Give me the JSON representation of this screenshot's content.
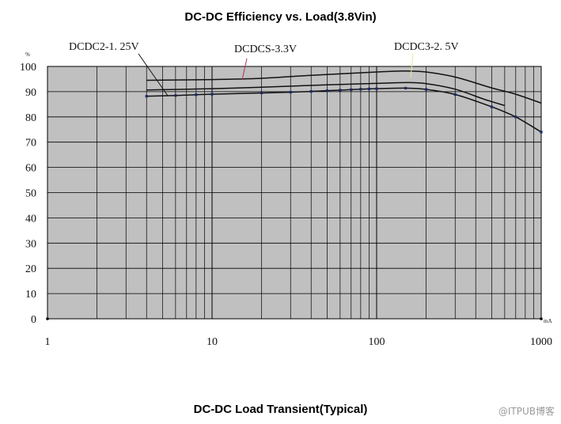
{
  "chart_data": {
    "type": "line",
    "title": "DC-DC Efficiency vs. Load(3.8Vin)",
    "subtitle": "DC-DC Load Transient(Typical)",
    "xlabel": "mA",
    "ylabel": "%",
    "xscale": "log",
    "xlim": [
      1,
      1000
    ],
    "ylim": [
      0,
      100
    ],
    "x_ticks": [
      "1",
      "10",
      "100",
      "1000"
    ],
    "y_ticks": [
      "0",
      "10",
      "20",
      "30",
      "40",
      "50",
      "60",
      "70",
      "80",
      "90",
      "100"
    ],
    "grid": true,
    "series": [
      {
        "name": "DCDC3-2. 5V",
        "x": [
          4,
          10,
          20,
          40,
          70,
          100,
          150,
          200,
          300,
          500,
          700,
          1000
        ],
        "values": [
          94.5,
          94.8,
          95.3,
          96.5,
          97.3,
          97.8,
          98.2,
          97.8,
          95.8,
          91.5,
          89,
          85.5
        ],
        "markers": false
      },
      {
        "name": "DCDCS-3.3V",
        "x": [
          4,
          10,
          20,
          50,
          100,
          150,
          200,
          300,
          450,
          600
        ],
        "values": [
          90.7,
          91.2,
          91.8,
          92.7,
          93.3,
          93.6,
          93.2,
          91,
          87,
          84.5
        ],
        "markers": false
      },
      {
        "name": "DCDC2-1. 25V",
        "x": [
          4,
          6,
          8,
          10,
          20,
          30,
          40,
          50,
          60,
          70,
          80,
          90,
          100,
          150,
          200,
          300,
          500,
          700,
          1000
        ],
        "values": [
          88.2,
          88.5,
          88.8,
          89,
          89.5,
          89.8,
          90.1,
          90.4,
          90.6,
          90.8,
          91,
          91.1,
          91.2,
          91.4,
          90.9,
          88.9,
          84,
          80,
          74
        ],
        "markers": true
      }
    ]
  },
  "watermark": "@ITPUB博客"
}
